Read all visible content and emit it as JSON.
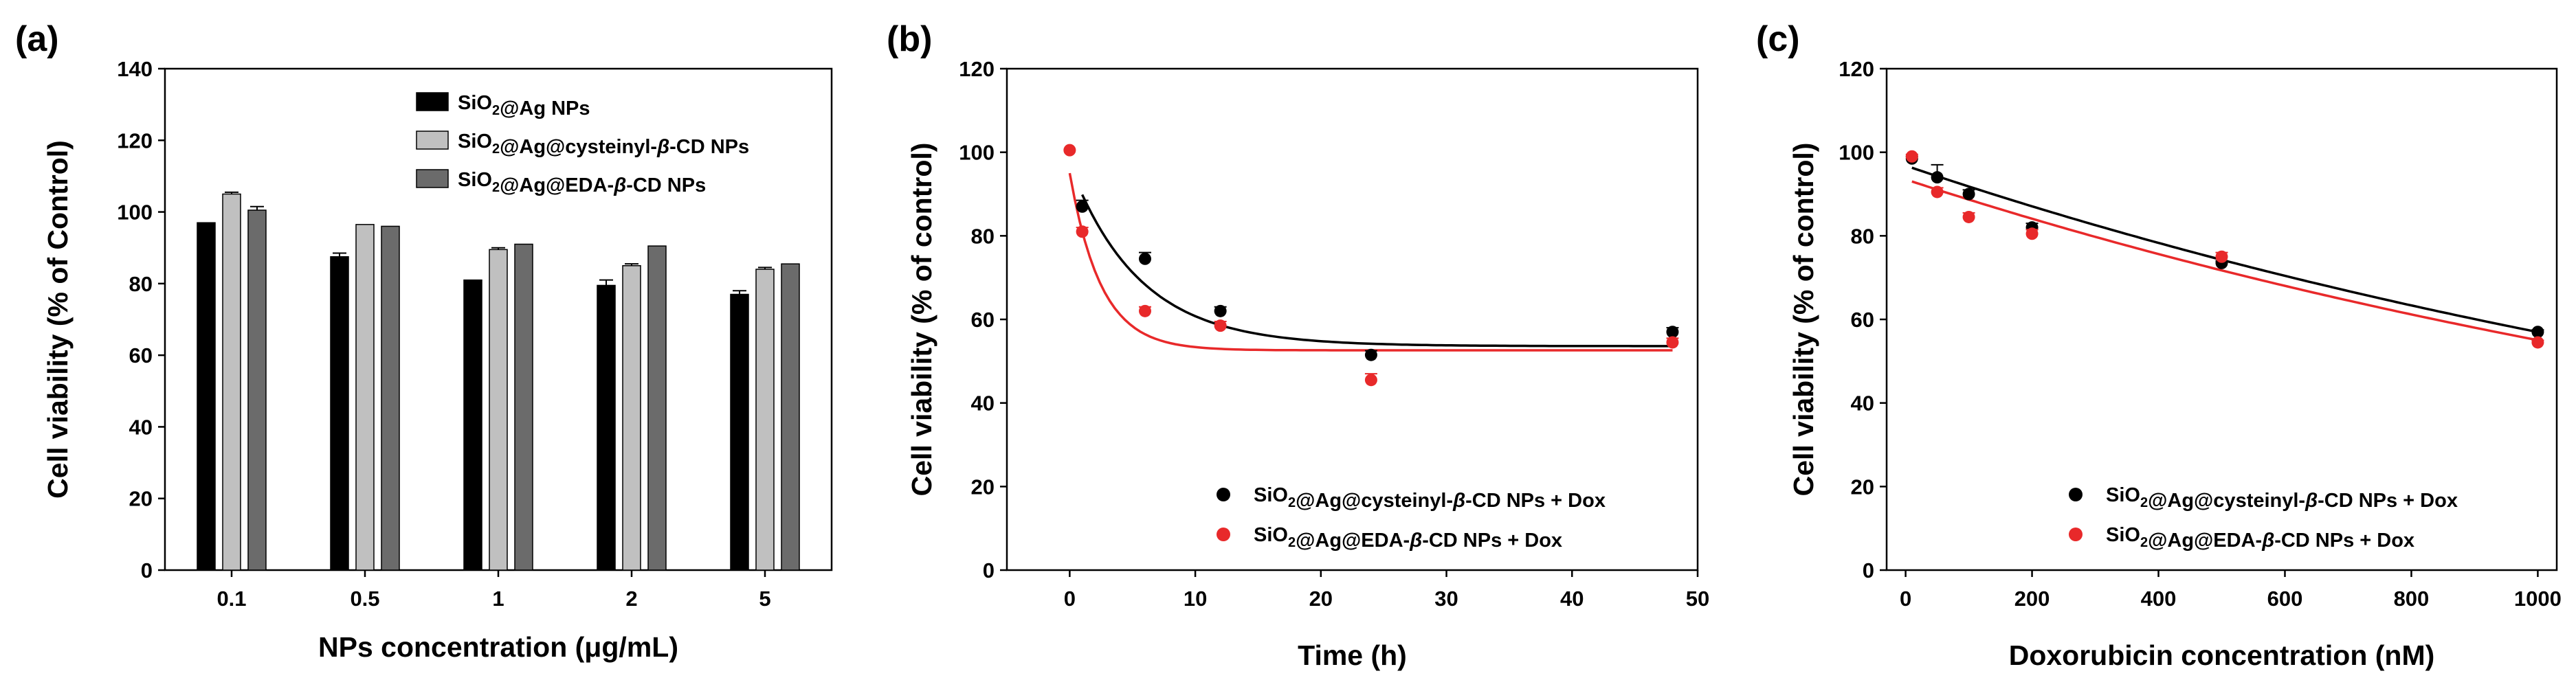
{
  "chart_data": [
    {
      "panel_label": "(a)",
      "type": "bar",
      "xlabel": "NPs concentration (μg/mL)",
      "ylabel": "Cell viability (% of Control)",
      "ylim": [
        0,
        140
      ],
      "yticks": [
        0,
        20,
        40,
        60,
        80,
        100,
        120,
        140
      ],
      "categories": [
        "0.1",
        "0.5",
        "1",
        "2",
        "5"
      ],
      "legend_position": "top-right",
      "series": [
        {
          "name": "SiO2@Ag NPs",
          "color": "#000000",
          "values": [
            97,
            87.5,
            81,
            79.5,
            77
          ],
          "errors": [
            0,
            1,
            0,
            1.5,
            1
          ]
        },
        {
          "name": "SiO2@Ag@cysteinyl-β-CD NPs",
          "color": "#c0c0c0",
          "values": [
            105,
            96.5,
            89.5,
            85,
            84
          ],
          "errors": [
            0.5,
            0,
            0.5,
            0.5,
            0.5
          ]
        },
        {
          "name": "SiO2@Ag@EDA-β-CD NPs",
          "color": "#6b6b6b",
          "values": [
            100.5,
            96,
            91,
            90.5,
            85.5
          ],
          "errors": [
            1,
            0,
            0,
            0,
            0
          ]
        }
      ]
    },
    {
      "panel_label": "(b)",
      "type": "scatter",
      "xlabel": "Time (h)",
      "ylabel": "Cell viability (% of control)",
      "xlim": [
        -5,
        50
      ],
      "ylim": [
        0,
        120
      ],
      "xticks": [
        0,
        10,
        20,
        30,
        40,
        50
      ],
      "yticks": [
        0,
        20,
        40,
        60,
        80,
        100,
        120
      ],
      "legend_position": "bottom-right",
      "series": [
        {
          "name": "SiO2@Ag@cysteinyl-β-CD NPs + Dox",
          "color": "#000000",
          "x": [
            1,
            6,
            12,
            24,
            48
          ],
          "y": [
            87,
            74.5,
            62,
            51.5,
            57
          ],
          "errors": [
            1.5,
            1.5,
            1,
            1,
            1
          ],
          "fit": {
            "model": "y0 + a*exp(-b*x)",
            "y0": 53.6,
            "a": 43.4,
            "b": 0.18
          }
        },
        {
          "name": "SiO2@Ag@EDA-β-CD NPs + Dox",
          "color": "#e8292a",
          "x": [
            0,
            1,
            6,
            12,
            24,
            48
          ],
          "y": [
            100.5,
            81,
            62,
            58.5,
            45.5,
            54.5
          ],
          "errors": [
            0,
            1,
            1,
            1,
            1.5,
            1
          ],
          "fit": {
            "model": "y0 + a*exp(-b*x)",
            "y0": 52.6,
            "a": 42.4,
            "b": 0.4
          }
        }
      ]
    },
    {
      "panel_label": "(c)",
      "type": "scatter",
      "xlabel": "Doxorubicin concentration (nM)",
      "ylabel": "Cell viability (% of control)",
      "xlim": [
        -30,
        1030
      ],
      "ylim": [
        0,
        120
      ],
      "xticks": [
        0,
        200,
        400,
        600,
        800,
        1000
      ],
      "yticks": [
        0,
        20,
        40,
        60,
        80,
        100,
        120
      ],
      "legend_position": "bottom-right",
      "series": [
        {
          "name": "SiO2@Ag@cysteinyl-β-CD NPs + Dox",
          "color": "#000000",
          "x": [
            10,
            50,
            100,
            200,
            500,
            1000
          ],
          "y": [
            98.5,
            94,
            90,
            82,
            73.5,
            57
          ],
          "errors": [
            0.5,
            3,
            1,
            1,
            0.5,
            0.5
          ],
          "fit": {
            "model": "a*exp(-b*x)",
            "a": 96.8,
            "b": 0.00053
          }
        },
        {
          "name": "SiO2@Ag@EDA-β-CD NPs + Dox",
          "color": "#e8292a",
          "x": [
            10,
            50,
            100,
            200,
            500,
            1000
          ],
          "y": [
            99,
            90.5,
            84.5,
            80.5,
            75,
            54.5
          ],
          "errors": [
            0.5,
            1,
            1,
            1,
            1,
            0.5
          ],
          "fit": {
            "model": "a*exp(-b*x)",
            "a": 93.5,
            "b": 0.00053
          }
        }
      ]
    }
  ]
}
